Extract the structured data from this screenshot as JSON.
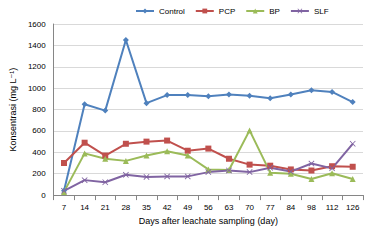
{
  "chart_data": {
    "type": "line",
    "x_label": "Days after leachate sampling (day)",
    "y_label": "Konsentrasi (mg L⁻¹)",
    "categories": [
      "7",
      "14",
      "21",
      "28",
      "35",
      "42",
      "49",
      "56",
      "63",
      "70",
      "77",
      "84",
      "98",
      "112",
      "126"
    ],
    "series": [
      {
        "name": "Control",
        "color": "#4f81bd",
        "marker": "diamond",
        "values": [
          40,
          850,
          790,
          1450,
          860,
          935,
          935,
          925,
          940,
          930,
          905,
          940,
          980,
          965,
          870
        ]
      },
      {
        "name": "PCP",
        "color": "#c0504d",
        "marker": "square",
        "values": [
          300,
          490,
          370,
          480,
          500,
          510,
          415,
          435,
          340,
          285,
          275,
          240,
          230,
          270,
          265
        ]
      },
      {
        "name": "BP",
        "color": "#9bbb59",
        "marker": "triangle",
        "values": [
          30,
          390,
          340,
          320,
          370,
          410,
          370,
          240,
          235,
          605,
          210,
          200,
          150,
          205,
          150
        ]
      },
      {
        "name": "SLF",
        "color": "#8064a2",
        "marker": "x",
        "values": [
          40,
          140,
          120,
          190,
          170,
          175,
          175,
          215,
          230,
          215,
          255,
          220,
          295,
          250,
          480
        ]
      }
    ],
    "ylim": [
      0,
      1600
    ],
    "yticks": [
      0,
      200,
      400,
      600,
      800,
      1000,
      1200,
      1400,
      1600
    ],
    "grid": true,
    "legend": "top"
  }
}
